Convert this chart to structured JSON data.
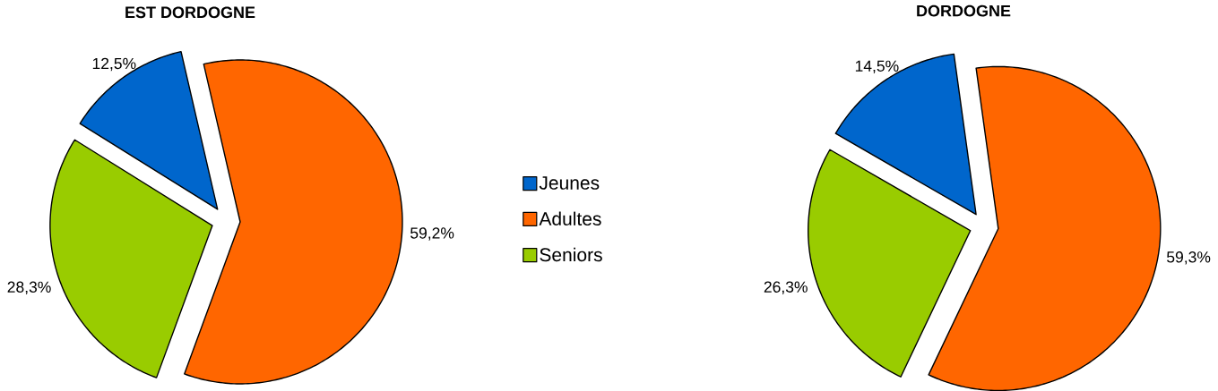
{
  "chart_data": [
    {
      "type": "pie",
      "title": "EST DORDOGNE",
      "categories": [
        "Jeunes",
        "Adultes",
        "Seniors"
      ],
      "values": [
        12.5,
        59.2,
        28.3
      ],
      "colors": [
        "#0066cc",
        "#ff6600",
        "#99cc00"
      ],
      "value_labels": [
        "12,5%",
        "59,2%",
        "28,3%"
      ],
      "legend": "right"
    },
    {
      "type": "pie",
      "title": "DORDOGNE",
      "categories": [
        null,
        null,
        null
      ],
      "values": [
        14.5,
        59.3,
        26.3
      ],
      "colors": [
        "#0066cc",
        "#ff6600",
        "#99cc00"
      ],
      "value_labels": [
        "14,5%",
        "59,3%",
        "26,3%"
      ]
    }
  ]
}
